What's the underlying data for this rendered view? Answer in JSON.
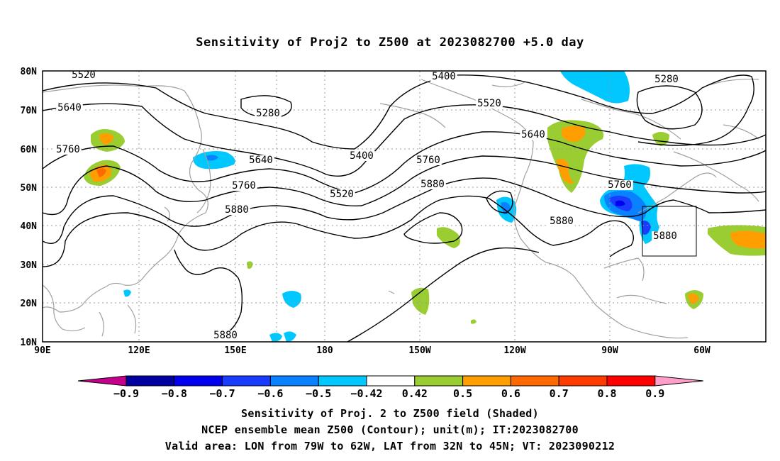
{
  "title": "Sensitivity of Proj2 to Z500 at 2023082700 +5.0 day",
  "map": {
    "lon_labels": [
      "90E",
      "120E",
      "150E",
      "180",
      "150W",
      "120W",
      "90W",
      "60W"
    ],
    "lat_labels": [
      "80N",
      "70N",
      "60N",
      "50N",
      "40N",
      "30N",
      "20N",
      "10N"
    ],
    "contour_labels": [
      "5520",
      "5640",
      "5760",
      "5280",
      "5400",
      "5520",
      "5640",
      "5760",
      "5880",
      "5400",
      "5520",
      "5640",
      "5760",
      "5880",
      "5280",
      "5880",
      "5760",
      "5880",
      "5880"
    ],
    "contour_color": "#000000",
    "coastline_color": "#a0a0a0",
    "grid": "dotted",
    "valid_box": {
      "lon_from": "79W",
      "lon_to": "62W",
      "lat_from": "32N",
      "lat_to": "45N"
    }
  },
  "colorbar": {
    "tick_labels": [
      "-0.9",
      "-0.8",
      "-0.7",
      "-0.6",
      "-0.5",
      "-0.42",
      "0.42",
      "0.5",
      "0.6",
      "0.7",
      "0.8",
      "0.9"
    ],
    "colors": [
      "#c4008c",
      "#0000a0",
      "#0000ee",
      "#1a3cff",
      "#0a82ff",
      "#00c8ff",
      "#ffffff",
      "#9acd32",
      "#ff9e00",
      "#ff6a00",
      "#ff3c00",
      "#ff0000",
      "#ff9ec8"
    ]
  },
  "captions": {
    "line1": "Sensitivity of Proj. 2 to Z500 field (Shaded)",
    "line2": "NCEP ensemble mean Z500 (Contour); unit(m); IT:2023082700",
    "line3": "Valid area: LON from 79W to 62W, LAT from 32N to 45N; VT: 2023090212"
  }
}
